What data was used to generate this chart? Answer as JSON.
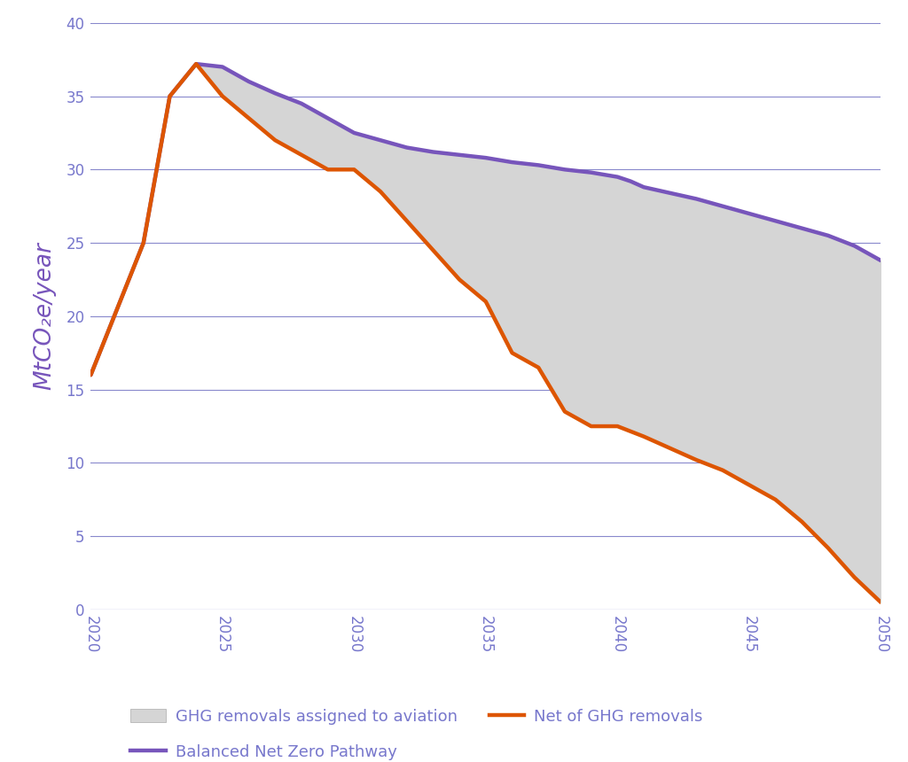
{
  "title": "",
  "ylabel": "MtCO₂e/year",
  "xlabel": "",
  "xlim": [
    2020,
    2050
  ],
  "ylim": [
    0,
    40
  ],
  "yticks": [
    0,
    5,
    10,
    15,
    20,
    25,
    30,
    35,
    40
  ],
  "xticks": [
    2020,
    2025,
    2030,
    2035,
    2040,
    2045,
    2050
  ],
  "background_color": "#ffffff",
  "grid_color": "#8888cc",
  "axis_color": "#7777cc",
  "purple_color": "#7755bb",
  "orange_color": "#dd5500",
  "fill_color": "#d5d5d5",
  "balanced_net_zero": {
    "x": [
      2020,
      2021,
      2022,
      2023,
      2024,
      2025,
      2026,
      2027,
      2028,
      2029,
      2030,
      2031,
      2032,
      2033,
      2034,
      2035,
      2036,
      2037,
      2038,
      2039,
      2040,
      2040.5,
      2041,
      2042,
      2043,
      2044,
      2045,
      2046,
      2047,
      2048,
      2049,
      2050
    ],
    "y": [
      16.0,
      20.5,
      25.0,
      35.0,
      37.2,
      37.0,
      36.0,
      35.2,
      34.5,
      33.5,
      32.5,
      32.0,
      31.5,
      31.2,
      31.0,
      30.8,
      30.5,
      30.3,
      30.0,
      29.8,
      29.5,
      29.2,
      28.8,
      28.4,
      28.0,
      27.5,
      27.0,
      26.5,
      26.0,
      25.5,
      24.8,
      23.8
    ]
  },
  "net_of_ghg": {
    "x": [
      2020,
      2021,
      2022,
      2023,
      2024,
      2025,
      2026,
      2027,
      2028,
      2029,
      2030,
      2031,
      2032,
      2033,
      2034,
      2035,
      2036,
      2037,
      2038,
      2039,
      2040,
      2041,
      2042,
      2043,
      2044,
      2045,
      2046,
      2047,
      2048,
      2049,
      2050
    ],
    "y": [
      16.0,
      20.5,
      25.0,
      35.0,
      37.2,
      35.0,
      33.5,
      32.0,
      31.0,
      30.0,
      30.0,
      28.5,
      26.5,
      24.5,
      22.5,
      21.0,
      17.5,
      16.5,
      13.5,
      12.5,
      12.5,
      11.8,
      11.0,
      10.2,
      9.5,
      8.5,
      7.5,
      6.0,
      4.2,
      2.2,
      0.5
    ]
  },
  "legend_fontsize": 13,
  "tick_fontsize": 12,
  "ylabel_fontsize": 19,
  "line_width": 3.2
}
